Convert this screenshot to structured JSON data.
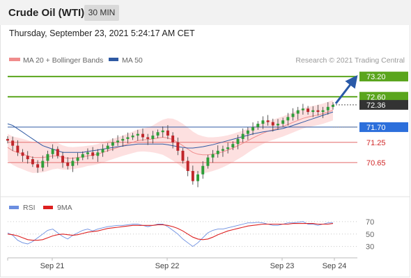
{
  "header": {
    "title": "Crude Oil (WTI)",
    "timeframe": "30 MIN"
  },
  "datetime": "Thursday, September 23, 2021 5:24:17 AM CET",
  "legend": {
    "bollinger": "MA 20 + Bollinger Bands",
    "ma50": "MA 50",
    "credit": "Research © 2021 Trading Central"
  },
  "rsi_legend": {
    "rsi": "RSI",
    "ma": "9MA"
  },
  "colors": {
    "resistance": "#5aa51d",
    "support": "#e98585",
    "ma50": "#2f5aa3",
    "current_price": "#333333",
    "pivot": "#2c6fdb",
    "arrow": "#2a5aa8",
    "bollinger_fill": "#fde0e0",
    "candle_up": "#2f9e3a",
    "candle_down": "#c0262b",
    "rsi_line": "#6b8ee0",
    "rsi_ma": "#dd2020"
  },
  "chart_data": [
    {
      "type": "candlestick",
      "levels": [
        {
          "kind": "resistance",
          "value": 73.2,
          "label": "73.20"
        },
        {
          "kind": "resistance",
          "value": 72.6,
          "label": "72.60"
        },
        {
          "kind": "current",
          "value": 72.36,
          "label": "72.36"
        },
        {
          "kind": "pivot",
          "value": 71.7,
          "label": "71.70"
        },
        {
          "kind": "support",
          "value": 71.25,
          "label": "71.25"
        },
        {
          "kind": "support",
          "value": 70.65,
          "label": "70.65"
        }
      ],
      "x_ticks": [
        "Sep 21",
        "Sep 22",
        "Sep 23",
        "Sep 24"
      ],
      "ylim": [
        69.7,
        73.45
      ],
      "series_close": [
        71.3,
        71.15,
        70.95,
        70.85,
        70.75,
        70.6,
        70.5,
        70.7,
        70.9,
        71.05,
        70.85,
        70.65,
        70.55,
        70.7,
        70.8,
        70.9,
        70.95,
        70.85,
        70.95,
        71.05,
        71.15,
        71.25,
        71.3,
        71.35,
        71.4,
        71.45,
        71.5,
        71.4,
        71.35,
        71.45,
        71.55,
        71.6,
        71.45,
        71.25,
        71.0,
        70.7,
        70.4,
        70.1,
        70.3,
        70.55,
        70.8,
        70.9,
        71.0,
        71.05,
        71.1,
        71.2,
        71.35,
        71.5,
        71.6,
        71.7,
        71.8,
        71.9,
        71.85,
        71.75,
        71.8,
        71.9,
        72.0,
        72.1,
        72.2,
        72.25,
        72.15,
        72.2,
        72.15,
        72.2,
        72.3,
        72.36
      ],
      "series_ma50": [
        71.8,
        71.75,
        71.65,
        71.55,
        71.45,
        71.35,
        71.25,
        71.15,
        71.1,
        71.05,
        71.0,
        70.95,
        70.95,
        70.95,
        70.95,
        70.95,
        70.98,
        71.0,
        71.02,
        71.05,
        71.07,
        71.1,
        71.12,
        71.14,
        71.16,
        71.18,
        71.2,
        71.2,
        71.2,
        71.2,
        71.2,
        71.2,
        71.18,
        71.15,
        71.12,
        71.1,
        71.08,
        71.08,
        71.1,
        71.12,
        71.15,
        71.18,
        71.22,
        71.26,
        71.3,
        71.34,
        71.38,
        71.42,
        71.46,
        71.5,
        71.53,
        71.56,
        71.58,
        71.6,
        71.63,
        71.66,
        71.7,
        71.75,
        71.8,
        71.85,
        71.9,
        71.95,
        72.0,
        72.05,
        72.1,
        72.15
      ],
      "series_ma20": [
        71.1,
        71.0,
        70.95,
        70.9,
        70.85,
        70.8,
        70.8,
        70.8,
        70.82,
        70.85,
        70.85,
        70.8,
        70.78,
        70.78,
        70.8,
        70.82,
        70.85,
        70.87,
        70.9,
        70.95,
        71.0,
        71.05,
        71.1,
        71.15,
        71.2,
        71.25,
        71.3,
        71.32,
        71.33,
        71.35,
        71.38,
        71.4,
        71.38,
        71.33,
        71.25,
        71.15,
        71.05,
        70.95,
        70.9,
        70.88,
        70.88,
        70.9,
        70.93,
        70.97,
        71.02,
        71.08,
        71.15,
        71.22,
        71.3,
        71.38,
        71.45,
        71.52,
        71.58,
        71.62,
        71.67,
        71.72,
        71.78,
        71.84,
        71.9,
        71.96,
        72.0,
        72.03,
        72.06,
        72.1,
        72.15,
        72.2
      ],
      "bollinger_width": [
        0.4,
        0.42,
        0.44,
        0.45,
        0.46,
        0.46,
        0.45,
        0.44,
        0.42,
        0.4,
        0.38,
        0.36,
        0.34,
        0.33,
        0.32,
        0.31,
        0.3,
        0.3,
        0.3,
        0.3,
        0.3,
        0.3,
        0.3,
        0.3,
        0.31,
        0.32,
        0.33,
        0.34,
        0.36,
        0.4,
        0.46,
        0.52,
        0.58,
        0.62,
        0.64,
        0.65,
        0.64,
        0.62,
        0.58,
        0.55,
        0.52,
        0.5,
        0.48,
        0.46,
        0.44,
        0.42,
        0.4,
        0.38,
        0.36,
        0.34,
        0.33,
        0.32,
        0.31,
        0.3,
        0.3,
        0.3,
        0.3,
        0.3,
        0.3,
        0.3,
        0.3,
        0.3,
        0.3,
        0.3,
        0.3,
        0.3
      ],
      "projection": {
        "from": 72.36,
        "to": 73.2
      }
    },
    {
      "type": "line",
      "name": "RSI",
      "ylim": [
        15,
        80
      ],
      "y_ticks": [
        70,
        50,
        30
      ],
      "series": [
        {
          "name": "RSI",
          "values": [
            52,
            48,
            40,
            36,
            34,
            38,
            44,
            50,
            56,
            58,
            52,
            46,
            42,
            48,
            52,
            56,
            58,
            55,
            58,
            60,
            62,
            63,
            64,
            64,
            65,
            66,
            66,
            64,
            62,
            64,
            66,
            66,
            62,
            56,
            50,
            42,
            36,
            30,
            36,
            44,
            52,
            56,
            58,
            58,
            60,
            62,
            64,
            66,
            68,
            68,
            69,
            68,
            66,
            64,
            64,
            66,
            68,
            68,
            69,
            70,
            66,
            66,
            64,
            66,
            68,
            68
          ]
        },
        {
          "name": "9MA",
          "values": [
            50,
            49,
            47,
            44,
            41,
            40,
            40,
            41,
            44,
            47,
            49,
            50,
            49,
            48,
            49,
            51,
            53,
            54,
            55,
            57,
            59,
            60,
            61,
            62,
            63,
            64,
            64,
            64,
            64,
            64,
            65,
            65,
            64,
            62,
            59,
            55,
            50,
            45,
            42,
            41,
            42,
            45,
            49,
            52,
            55,
            57,
            59,
            61,
            63,
            64,
            65,
            66,
            66,
            66,
            66,
            66,
            66,
            67,
            67,
            67,
            67,
            67,
            66,
            66,
            66,
            67
          ]
        }
      ]
    }
  ]
}
